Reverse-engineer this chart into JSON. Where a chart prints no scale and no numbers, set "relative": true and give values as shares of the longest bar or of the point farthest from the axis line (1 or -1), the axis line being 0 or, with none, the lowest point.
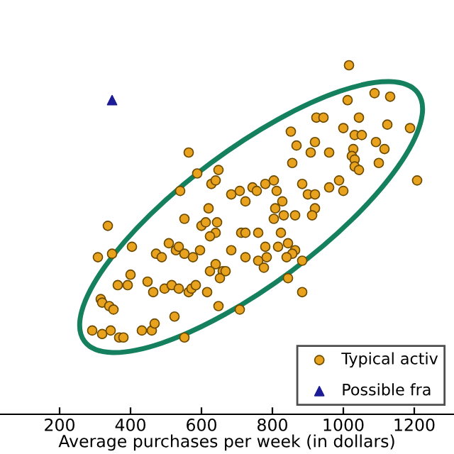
{
  "chart_data": {
    "type": "scatter",
    "xlabel": "Average purchases per week (in dollars)",
    "relative": true,
    "xlim": [
      32,
      1312
    ],
    "xticks": [
      200,
      400,
      600,
      800,
      1000,
      1200
    ],
    "grid": false,
    "legend": "bottom right",
    "tick_labels": "x",
    "series": [
      {
        "name": "Typical activ",
        "color": "#e8a21e",
        "marker": "circle",
        "x": [
          564,
          588,
          648,
          628,
          640,
          540,
          620,
          552,
          600,
          612,
          644,
          640,
          624,
          336,
          1016,
          1088,
          1132,
          1012,
          924,
          944,
          1044,
          1124,
          1188,
          1000,
          852,
          1032,
          1052,
          868,
          920,
          1092,
          908,
          960,
          1116,
          1028,
          1024,
          1032,
          1100,
          1032,
          1044,
          856,
          988,
          1208,
          884,
          780,
          804,
          744,
          756,
          812,
          960,
          1000,
          684,
          708,
          900,
          920,
          828,
          724,
          808,
          920,
          912,
          864,
          804,
          832,
          824,
          712,
          724,
          760,
          684,
          724,
          760,
          784,
          776,
          780,
          816,
          844,
          864,
          856,
          840,
          884,
          844,
          884,
          660,
          652,
          668,
          648,
          708,
          640,
          404,
          348,
          308,
          472,
          488,
          508,
          528,
          536,
          552,
          576,
          596,
          624,
          400,
          364,
          392,
          448,
          464,
          496,
          516,
          536,
          564,
          572,
          584,
          616,
          316,
          320,
          340,
          352,
          524,
          292,
          320,
          344,
          368,
          380,
          432,
          460,
          468,
          552
        ],
        "values": [
          0.75,
          0.69,
          0.7,
          0.66,
          0.67,
          0.64,
          0.59,
          0.56,
          0.54,
          0.55,
          0.55,
          0.52,
          0.51,
          0.54,
          1.0,
          0.92,
          0.91,
          0.9,
          0.85,
          0.85,
          0.85,
          0.83,
          0.82,
          0.82,
          0.81,
          0.8,
          0.8,
          0.77,
          0.78,
          0.78,
          0.75,
          0.75,
          0.76,
          0.76,
          0.74,
          0.73,
          0.72,
          0.71,
          0.7,
          0.72,
          0.67,
          0.67,
          0.66,
          0.66,
          0.67,
          0.65,
          0.64,
          0.64,
          0.65,
          0.64,
          0.63,
          0.64,
          0.63,
          0.63,
          0.61,
          0.61,
          0.59,
          0.59,
          0.57,
          0.57,
          0.56,
          0.57,
          0.52,
          0.52,
          0.52,
          0.52,
          0.47,
          0.45,
          0.44,
          0.45,
          0.42,
          0.48,
          0.48,
          0.49,
          0.47,
          0.46,
          0.45,
          0.44,
          0.39,
          0.35,
          0.41,
          0.39,
          0.41,
          0.31,
          0.3,
          0.43,
          0.48,
          0.46,
          0.45,
          0.46,
          0.45,
          0.49,
          0.47,
          0.48,
          0.46,
          0.45,
          0.47,
          0.41,
          0.4,
          0.37,
          0.37,
          0.38,
          0.35,
          0.36,
          0.37,
          0.36,
          0.35,
          0.36,
          0.37,
          0.35,
          0.33,
          0.32,
          0.31,
          0.3,
          0.28,
          0.24,
          0.23,
          0.24,
          0.22,
          0.22,
          0.24,
          0.24,
          0.26,
          0.22
        ]
      },
      {
        "name": "Possible fra",
        "color": "#1c1c96",
        "marker": "triangle",
        "x": [
          348
        ],
        "values": [
          0.9
        ]
      }
    ]
  }
}
